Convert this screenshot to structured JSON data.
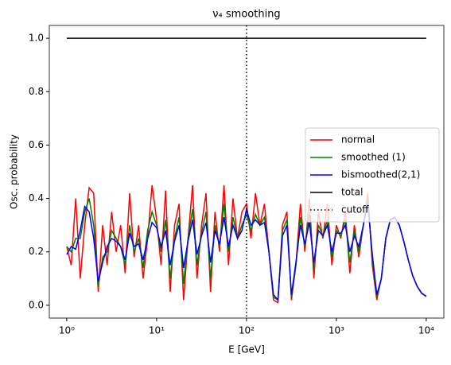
{
  "chart_data": {
    "type": "line",
    "title": "ν₄ smoothing",
    "xlabel": "E [GeV]",
    "ylabel": "Osc. probability",
    "xscale": "log",
    "xlim": [
      0.64,
      15700
    ],
    "ylim": [
      -0.048,
      1.048
    ],
    "xticks": [
      {
        "value": 1,
        "label": "10⁰"
      },
      {
        "value": 10,
        "label": "10¹"
      },
      {
        "value": 100,
        "label": "10²"
      },
      {
        "value": 1000,
        "label": "10³"
      },
      {
        "value": 10000,
        "label": "10⁴"
      }
    ],
    "yticks": [
      {
        "value": 0,
        "label": "0.0"
      },
      0.2,
      0.4,
      0.6,
      0.8,
      {
        "value": 1,
        "label": "1.0"
      }
    ],
    "legend": "center right",
    "x": [
      1,
      1.122,
      1.259,
      1.413,
      1.585,
      1.778,
      1.995,
      2.239,
      2.512,
      2.818,
      3.162,
      3.548,
      3.981,
      4.467,
      5.012,
      5.623,
      6.31,
      7.079,
      7.943,
      8.913,
      10,
      11.22,
      12.59,
      14.13,
      15.85,
      17.78,
      19.95,
      22.39,
      25.12,
      28.18,
      31.62,
      35.48,
      39.81,
      44.67,
      50.12,
      56.23,
      63.1,
      70.79,
      79.43,
      89.13,
      100,
      112.2,
      125.9,
      141.3,
      158.5,
      177.8,
      199.5,
      223.9,
      251.2,
      281.8,
      316.2,
      354.8,
      398.1,
      446.7,
      501.2,
      562.3,
      631,
      707.9,
      794.3,
      891.3,
      1000,
      1122,
      1259,
      1413,
      1585,
      1778,
      1995,
      2239,
      2512,
      2818,
      3162,
      3548,
      3981,
      4467,
      5012,
      5623,
      6310,
      7079,
      7943,
      8913,
      10000
    ],
    "series": [
      {
        "name": "normal",
        "color": "#ff0000",
        "values": [
          0.22,
          0.15,
          0.4,
          0.1,
          0.3,
          0.44,
          0.42,
          0.05,
          0.3,
          0.15,
          0.35,
          0.2,
          0.3,
          0.12,
          0.42,
          0.18,
          0.3,
          0.1,
          0.25,
          0.45,
          0.32,
          0.15,
          0.43,
          0.05,
          0.3,
          0.38,
          0.02,
          0.25,
          0.45,
          0.1,
          0.3,
          0.42,
          0.05,
          0.35,
          0.2,
          0.45,
          0.15,
          0.4,
          0.25,
          0.35,
          0.38,
          0.25,
          0.42,
          0.3,
          0.38,
          0.2,
          0.02,
          0.01,
          0.3,
          0.35,
          0.02,
          0.15,
          0.38,
          0.2,
          0.4,
          0.1,
          0.35,
          0.25,
          0.38,
          0.15,
          0.3,
          0.25,
          0.35,
          0.12,
          0.3,
          0.18,
          0.3,
          0.42,
          0.15,
          0.02,
          0.1,
          0.25,
          0.32,
          0.33,
          0.3,
          0.24,
          0.17,
          0.11,
          0.07,
          0.045,
          0.033
        ]
      },
      {
        "name": "smoothed (1)",
        "color": "#008000",
        "values": [
          0.22,
          0.2,
          0.25,
          0.25,
          0.35,
          0.4,
          0.3,
          0.07,
          0.18,
          0.2,
          0.28,
          0.25,
          0.22,
          0.15,
          0.3,
          0.2,
          0.25,
          0.14,
          0.28,
          0.35,
          0.3,
          0.2,
          0.32,
          0.1,
          0.25,
          0.33,
          0.08,
          0.25,
          0.36,
          0.15,
          0.27,
          0.35,
          0.1,
          0.3,
          0.22,
          0.38,
          0.2,
          0.33,
          0.25,
          0.3,
          0.34,
          0.28,
          0.34,
          0.3,
          0.33,
          0.2,
          0.03,
          0.02,
          0.28,
          0.32,
          0.03,
          0.15,
          0.33,
          0.22,
          0.34,
          0.14,
          0.3,
          0.26,
          0.32,
          0.18,
          0.28,
          0.26,
          0.32,
          0.16,
          0.28,
          0.2,
          0.3,
          0.4,
          0.17,
          0.03,
          0.1,
          0.25,
          0.32,
          0.33,
          0.3,
          0.24,
          0.17,
          0.11,
          0.07,
          0.045,
          0.033
        ]
      },
      {
        "name": "bismoothed(2,1)",
        "color": "#0000ff",
        "values": [
          0.19,
          0.22,
          0.21,
          0.28,
          0.37,
          0.35,
          0.25,
          0.09,
          0.16,
          0.22,
          0.25,
          0.24,
          0.22,
          0.17,
          0.27,
          0.22,
          0.23,
          0.17,
          0.25,
          0.31,
          0.29,
          0.22,
          0.28,
          0.15,
          0.24,
          0.3,
          0.14,
          0.24,
          0.32,
          0.19,
          0.26,
          0.31,
          0.16,
          0.28,
          0.23,
          0.33,
          0.22,
          0.3,
          0.25,
          0.28,
          0.36,
          0.3,
          0.32,
          0.3,
          0.31,
          0.2,
          0.04,
          0.02,
          0.26,
          0.3,
          0.04,
          0.16,
          0.3,
          0.23,
          0.31,
          0.16,
          0.28,
          0.26,
          0.3,
          0.2,
          0.27,
          0.27,
          0.3,
          0.2,
          0.26,
          0.22,
          0.3,
          0.38,
          0.19,
          0.04,
          0.1,
          0.25,
          0.32,
          0.33,
          0.3,
          0.24,
          0.17,
          0.11,
          0.07,
          0.045,
          0.033
        ]
      },
      {
        "name": "total",
        "color": "#000000",
        "x": [
          1,
          10000
        ],
        "values": [
          1,
          1
        ]
      },
      {
        "name": "cutoff",
        "color": "#000000",
        "linestyle": "dotted",
        "x": [
          100
        ]
      }
    ]
  }
}
